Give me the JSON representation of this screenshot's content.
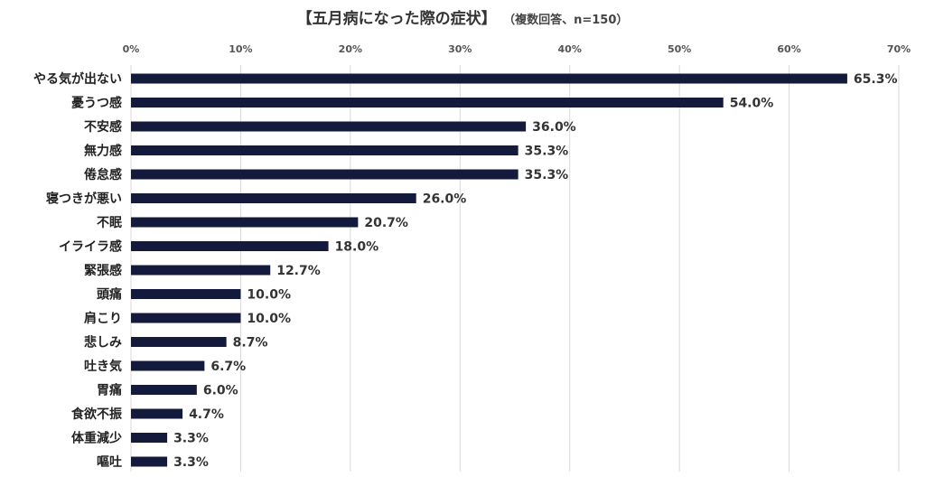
{
  "chart_data": {
    "type": "bar",
    "orientation": "horizontal",
    "title": "【五月病になった際の症状】",
    "subtitle": "（複数回答、n=150）",
    "xlabel": "",
    "ylabel": "",
    "xlim": [
      0,
      70
    ],
    "x_ticks": [
      "0%",
      "10%",
      "20%",
      "30%",
      "40%",
      "50%",
      "60%",
      "70%"
    ],
    "x_axis_position": "top",
    "grid": true,
    "bar_color": "#141a3c",
    "categories": [
      "やる気が出ない",
      "憂うつ感",
      "不安感",
      "無力感",
      "倦怠感",
      "寝つきが悪い",
      "不眠",
      "イライラ感",
      "緊張感",
      "頭痛",
      "肩こり",
      "悲しみ",
      "吐き気",
      "胃痛",
      "食欲不振",
      "体重減少",
      "嘔吐"
    ],
    "values": [
      65.3,
      54.0,
      36.0,
      35.3,
      35.3,
      26.0,
      20.7,
      18.0,
      12.7,
      10.0,
      10.0,
      8.7,
      6.7,
      6.0,
      4.7,
      3.3,
      3.3
    ],
    "data_labels": [
      "65.3%",
      "54.0%",
      "36.0%",
      "35.3%",
      "35.3%",
      "26.0%",
      "20.7%",
      "18.0%",
      "12.7%",
      "10.0%",
      "10.0%",
      "8.7%",
      "6.7%",
      "6.0%",
      "4.7%",
      "3.3%",
      "3.3%"
    ]
  }
}
